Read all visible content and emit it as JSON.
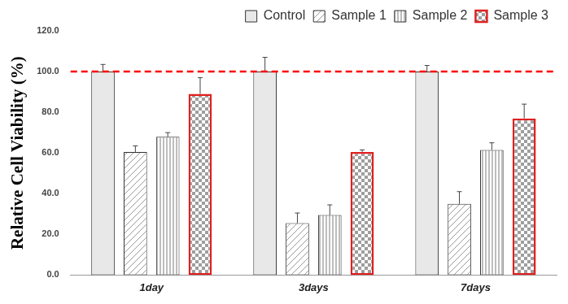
{
  "chart_data": {
    "type": "bar",
    "y_label": "Relative Cell Viability (%)",
    "categories": [
      "1day",
      "3days",
      "7days"
    ],
    "series": [
      {
        "name": "Control",
        "color": "#e8e8e8",
        "values": [
          100,
          100,
          100
        ],
        "errors": [
          3.5,
          7,
          3
        ]
      },
      {
        "name": "Sample 1",
        "color": "#ffffff",
        "values": [
          60.5,
          25.5,
          35
        ],
        "errors": [
          3,
          5,
          6
        ]
      },
      {
        "name": "Sample 2",
        "color": "#bdbdbd",
        "values": [
          68,
          29.5,
          61.5
        ],
        "errors": [
          2,
          5,
          3.5
        ]
      },
      {
        "name": "Sample 3",
        "color": "#9e9e9e",
        "values": [
          89,
          60.5,
          77
        ],
        "errors": [
          8,
          1,
          7
        ]
      }
    ],
    "ylim": [
      0,
      120
    ],
    "yticks": [
      {
        "value": 0,
        "label": "0.0"
      },
      {
        "value": 20,
        "label": "20.0"
      },
      {
        "value": 40,
        "label": "40.0"
      },
      {
        "value": 60,
        "label": "60.0"
      },
      {
        "value": 80,
        "label": "80.0"
      },
      {
        "value": 100,
        "label": "100.0"
      },
      {
        "value": 120,
        "label": "120.0"
      }
    ],
    "grid": false,
    "legend": "top-right",
    "reference_line": {
      "value": 100,
      "color": "#ff0000",
      "line_style": "dashed"
    }
  }
}
